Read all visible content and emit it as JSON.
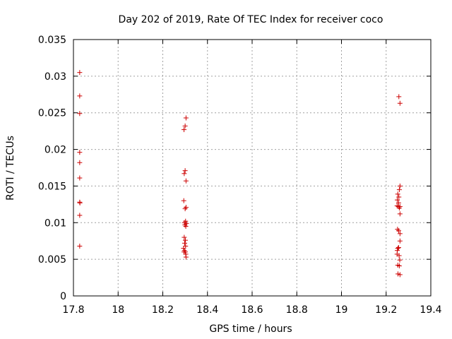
{
  "chart_data": {
    "type": "scatter",
    "title": "Day 202 of 2019, Rate Of TEC Index for receiver coco",
    "xlabel": "GPS time / hours",
    "ylabel": "ROTI / TECUs",
    "xlim": [
      17.8,
      19.4
    ],
    "ylim": [
      0,
      0.035
    ],
    "x_ticks": [
      17.8,
      18,
      18.2,
      18.4,
      18.6,
      18.8,
      19,
      19.2,
      19.4
    ],
    "x_tick_labels": [
      "17.8",
      "18",
      "18.2",
      "18.4",
      "18.6",
      "18.8",
      "19",
      "19.2",
      "19.4"
    ],
    "y_ticks": [
      0,
      0.005,
      0.01,
      0.015,
      0.02,
      0.025,
      0.03,
      0.035
    ],
    "y_tick_labels": [
      "0",
      "0.005",
      "0.01",
      "0.015",
      "0.02",
      "0.025",
      "0.03",
      "0.035"
    ],
    "grid": true,
    "marker": "+",
    "color": "#cc0000",
    "series": [
      {
        "name": "ROTI",
        "points": [
          [
            17.828,
            0.0305
          ],
          [
            17.828,
            0.0273
          ],
          [
            17.828,
            0.0249
          ],
          [
            17.828,
            0.0196
          ],
          [
            17.828,
            0.0182
          ],
          [
            17.828,
            0.0161
          ],
          [
            17.828,
            0.0128
          ],
          [
            17.829,
            0.0127
          ],
          [
            17.828,
            0.011
          ],
          [
            17.828,
            0.0068
          ],
          [
            18.304,
            0.0243
          ],
          [
            18.3,
            0.0232
          ],
          [
            18.295,
            0.0227
          ],
          [
            18.3,
            0.0171
          ],
          [
            18.296,
            0.0167
          ],
          [
            18.304,
            0.0157
          ],
          [
            18.294,
            0.013
          ],
          [
            18.304,
            0.0121
          ],
          [
            18.3,
            0.0119
          ],
          [
            18.302,
            0.0102
          ],
          [
            18.297,
            0.01
          ],
          [
            18.306,
            0.0099
          ],
          [
            18.299,
            0.0097
          ],
          [
            18.303,
            0.0095
          ],
          [
            18.296,
            0.008
          ],
          [
            18.301,
            0.0076
          ],
          [
            18.298,
            0.0072
          ],
          [
            18.302,
            0.0068
          ],
          [
            18.293,
            0.0065
          ],
          [
            18.297,
            0.0062
          ],
          [
            18.301,
            0.006
          ],
          [
            18.295,
            0.006
          ],
          [
            18.303,
            0.0057
          ],
          [
            18.304,
            0.0053
          ],
          [
            19.257,
            0.0272
          ],
          [
            19.262,
            0.0263
          ],
          [
            19.262,
            0.015
          ],
          [
            19.259,
            0.0145
          ],
          [
            19.252,
            0.0139
          ],
          [
            19.257,
            0.0135
          ],
          [
            19.25,
            0.0131
          ],
          [
            19.256,
            0.0127
          ],
          [
            19.249,
            0.0123
          ],
          [
            19.255,
            0.0122
          ],
          [
            19.262,
            0.0122
          ],
          [
            19.259,
            0.012
          ],
          [
            19.262,
            0.0112
          ],
          [
            19.251,
            0.0091
          ],
          [
            19.256,
            0.0089
          ],
          [
            19.262,
            0.0085
          ],
          [
            19.262,
            0.0075
          ],
          [
            19.256,
            0.0066
          ],
          [
            19.252,
            0.0065
          ],
          [
            19.25,
            0.0062
          ],
          [
            19.249,
            0.0057
          ],
          [
            19.258,
            0.0055
          ],
          [
            19.261,
            0.0049
          ],
          [
            19.252,
            0.0042
          ],
          [
            19.259,
            0.0041
          ],
          [
            19.253,
            0.003
          ],
          [
            19.262,
            0.0029
          ]
        ]
      }
    ]
  }
}
